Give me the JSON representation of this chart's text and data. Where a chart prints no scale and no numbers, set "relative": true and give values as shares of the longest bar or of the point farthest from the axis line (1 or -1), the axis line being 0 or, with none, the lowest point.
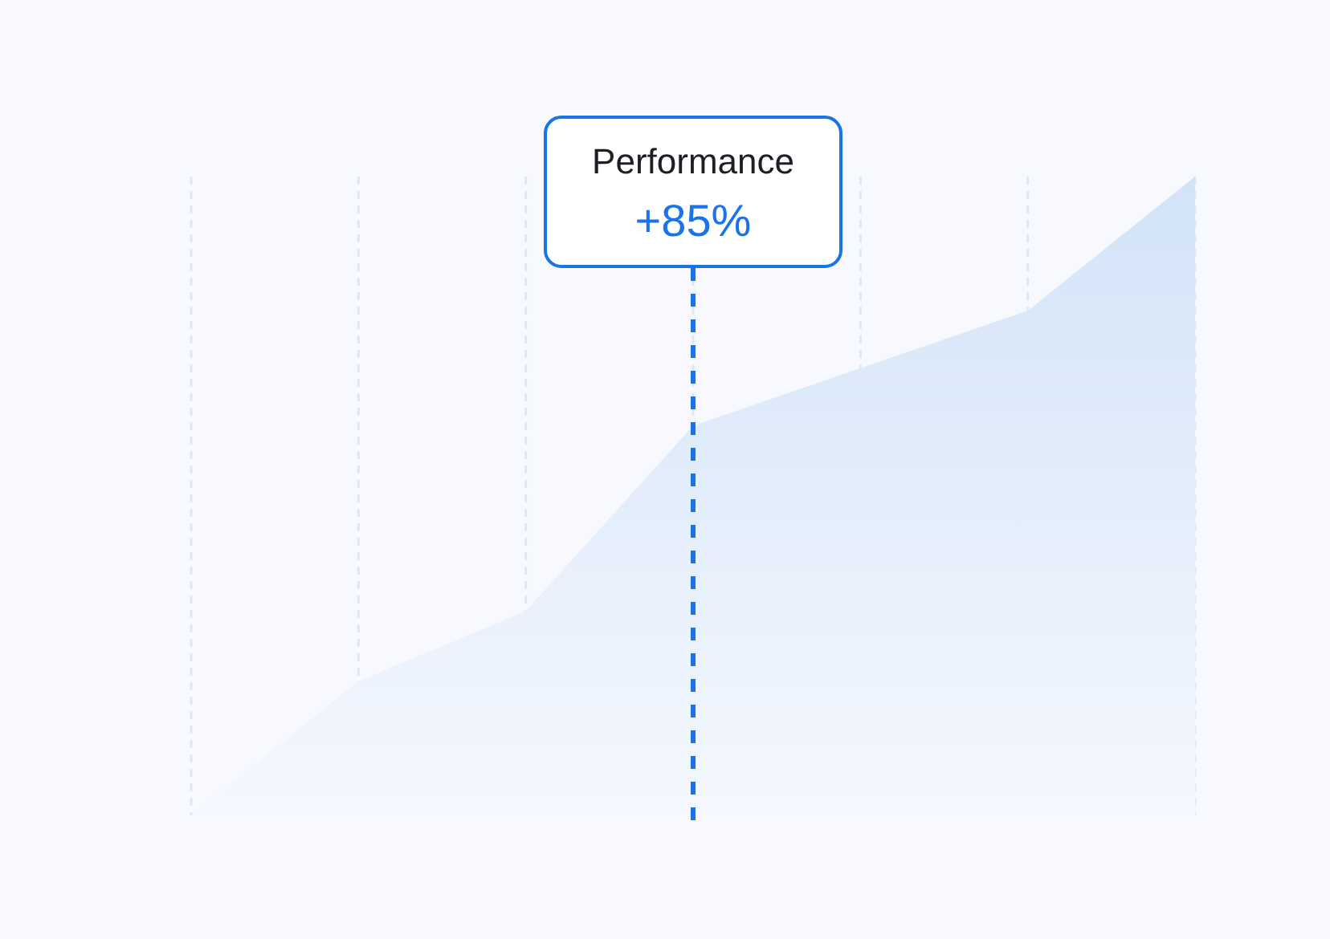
{
  "chart_data": {
    "type": "area",
    "categories": [
      null,
      null,
      null,
      null,
      null,
      null,
      null
    ],
    "values": [
      0,
      0.21,
      0.32,
      0.61,
      0.7,
      0.79,
      1
    ],
    "color": "#d2e3f8",
    "relative": true,
    "grid": "x",
    "annotations": [
      "Performance",
      "+85%"
    ]
  }
}
